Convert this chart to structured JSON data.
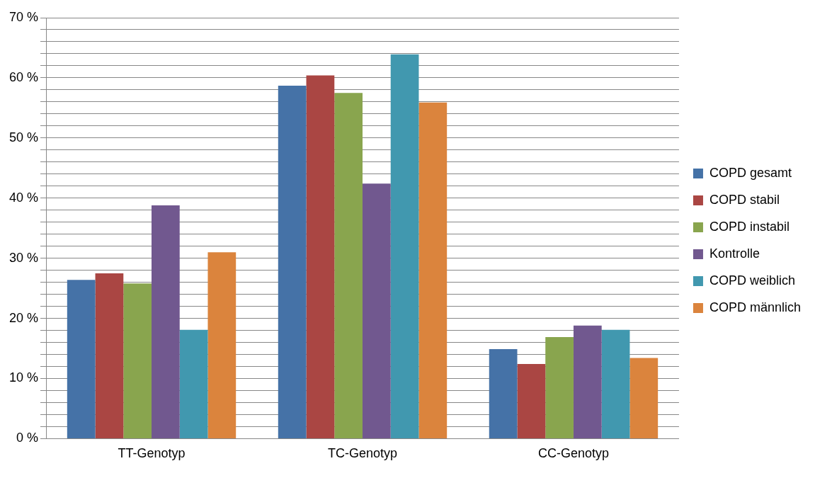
{
  "chart_data": {
    "type": "bar",
    "categories": [
      "TT-Genotyp",
      "TC-Genotyp",
      "CC-Genotyp"
    ],
    "series": [
      {
        "name": "COPD gesamt",
        "color": "#4572a7",
        "values": [
          26.4,
          58.7,
          14.9
        ]
      },
      {
        "name": "COPD stabil",
        "color": "#aa4643",
        "values": [
          27.5,
          60.4,
          12.4
        ]
      },
      {
        "name": "COPD instabil",
        "color": "#89a54e",
        "values": [
          25.8,
          57.5,
          16.9
        ]
      },
      {
        "name": "Kontrolle",
        "color": "#71588f",
        "values": [
          38.8,
          42.4,
          18.8
        ]
      },
      {
        "name": "COPD weiblich",
        "color": "#4198af",
        "values": [
          18.1,
          63.9,
          18.1
        ]
      },
      {
        "name": "COPD männlich",
        "color": "#db843d",
        "values": [
          31.0,
          55.9,
          13.4
        ]
      }
    ],
    "ylim": [
      0,
      70
    ],
    "yticks": [
      {
        "value": 0,
        "label": "0 %"
      },
      {
        "value": 2,
        "label": null
      },
      {
        "value": 4,
        "label": null
      },
      {
        "value": 6,
        "label": null
      },
      {
        "value": 8,
        "label": null
      },
      {
        "value": 10,
        "label": "10 %"
      },
      {
        "value": 12,
        "label": null
      },
      {
        "value": 14,
        "label": null
      },
      {
        "value": 16,
        "label": null
      },
      {
        "value": 18,
        "label": null
      },
      {
        "value": 20,
        "label": "20 %"
      },
      {
        "value": 22,
        "label": null
      },
      {
        "value": 24,
        "label": null
      },
      {
        "value": 26,
        "label": null
      },
      {
        "value": 28,
        "label": null
      },
      {
        "value": 30,
        "label": "30 %"
      },
      {
        "value": 32,
        "label": null
      },
      {
        "value": 34,
        "label": null
      },
      {
        "value": 36,
        "label": null
      },
      {
        "value": 38,
        "label": null
      },
      {
        "value": 40,
        "label": "40 %"
      },
      {
        "value": 42,
        "label": null
      },
      {
        "value": 44,
        "label": null
      },
      {
        "value": 46,
        "label": null
      },
      {
        "value": 48,
        "label": null
      },
      {
        "value": 50,
        "label": "50 %"
      },
      {
        "value": 52,
        "label": null
      },
      {
        "value": 54,
        "label": null
      },
      {
        "value": 56,
        "label": null
      },
      {
        "value": 58,
        "label": null
      },
      {
        "value": 60,
        "label": "60 %"
      },
      {
        "value": 62,
        "label": null
      },
      {
        "value": 64,
        "label": null
      },
      {
        "value": 66,
        "label": null
      },
      {
        "value": 68,
        "label": null
      },
      {
        "value": 70,
        "label": "70 %"
      }
    ],
    "grid": "y",
    "legend": "right"
  }
}
